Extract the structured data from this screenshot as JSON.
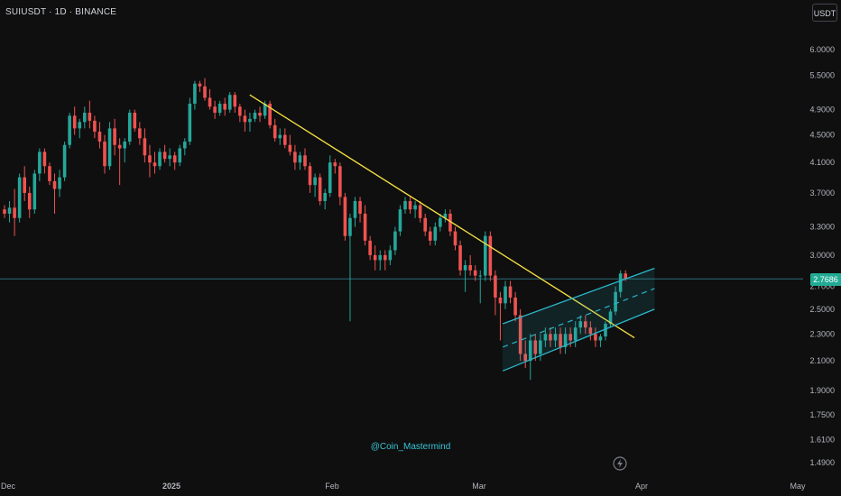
{
  "header": {
    "symbol": "SUIUSDT · 1D · BINANCE"
  },
  "toolbar": {
    "currency_label": "USDT"
  },
  "watermark": {
    "text": "@Coin_Mastermind"
  },
  "icons": {
    "replay": "lightning-icon"
  },
  "colors": {
    "background": "#0f0f0f",
    "up": "#26a69a",
    "down": "#ef5350",
    "trendline": "#f5e042",
    "channel": "#2bb6c9",
    "price_line": "#2a6f7a",
    "axis_text": "#b2b5be",
    "watermark": "#38c3d4"
  },
  "chart_data": {
    "type": "candlestick",
    "symbol": "SUIUSDT",
    "interval": "1D",
    "exchange": "BINANCE",
    "y_scale": "log",
    "ylim": [
      1.43,
      6.3
    ],
    "y_ticks": [
      "6.0000",
      "5.5000",
      "4.9000",
      "4.5000",
      "4.1000",
      "3.7000",
      "3.3000",
      "3.0000",
      "2.7000",
      "2.5000",
      "2.3000",
      "2.1000",
      "1.9000",
      "1.7500",
      "1.6100",
      "1.4900"
    ],
    "x_ticks": [
      "Dec",
      "2025",
      "Feb",
      "Mar",
      "Apr",
      "May"
    ],
    "last_price": 2.7686,
    "last_price_label": "2.7686",
    "candles": [
      [
        3.5,
        3.55,
        3.4,
        3.45
      ],
      [
        3.45,
        3.6,
        3.35,
        3.52
      ],
      [
        3.52,
        3.75,
        3.2,
        3.4
      ],
      [
        3.4,
        3.95,
        3.35,
        3.9
      ],
      [
        3.9,
        4.05,
        3.6,
        3.7
      ],
      [
        3.7,
        3.78,
        3.4,
        3.5
      ],
      [
        3.5,
        4.0,
        3.45,
        3.95
      ],
      [
        3.95,
        4.3,
        3.85,
        4.25
      ],
      [
        4.25,
        4.3,
        3.95,
        4.05
      ],
      [
        4.05,
        4.1,
        3.8,
        3.85
      ],
      [
        3.85,
        3.95,
        3.45,
        3.75
      ],
      [
        3.75,
        4.0,
        3.65,
        3.9
      ],
      [
        3.9,
        4.4,
        3.85,
        4.35
      ],
      [
        4.35,
        4.85,
        4.3,
        4.8
      ],
      [
        4.8,
        4.95,
        4.5,
        4.6
      ],
      [
        4.6,
        4.75,
        4.45,
        4.7
      ],
      [
        4.7,
        4.95,
        4.6,
        4.85
      ],
      [
        4.85,
        5.05,
        4.6,
        4.72
      ],
      [
        4.72,
        4.8,
        4.45,
        4.55
      ],
      [
        4.55,
        4.7,
        4.3,
        4.4
      ],
      [
        4.4,
        4.5,
        3.95,
        4.05
      ],
      [
        4.05,
        4.7,
        4.0,
        4.6
      ],
      [
        4.6,
        4.75,
        4.2,
        4.35
      ],
      [
        4.35,
        4.45,
        3.8,
        4.3
      ],
      [
        4.3,
        4.45,
        4.1,
        4.4
      ],
      [
        4.4,
        4.9,
        4.35,
        4.85
      ],
      [
        4.85,
        4.9,
        4.55,
        4.6
      ],
      [
        4.6,
        4.7,
        4.35,
        4.45
      ],
      [
        4.45,
        4.6,
        4.1,
        4.2
      ],
      [
        4.2,
        4.35,
        3.9,
        4.1
      ],
      [
        4.1,
        4.25,
        3.95,
        4.05
      ],
      [
        4.05,
        4.3,
        4.0,
        4.25
      ],
      [
        4.25,
        4.35,
        4.1,
        4.15
      ],
      [
        4.15,
        4.3,
        4.05,
        4.2
      ],
      [
        4.2,
        4.25,
        4.0,
        4.1
      ],
      [
        4.1,
        4.35,
        4.05,
        4.3
      ],
      [
        4.3,
        4.45,
        4.2,
        4.4
      ],
      [
        4.4,
        5.1,
        4.35,
        5.0
      ],
      [
        5.0,
        5.4,
        4.9,
        5.35
      ],
      [
        5.35,
        5.4,
        5.2,
        5.3
      ],
      [
        5.3,
        5.45,
        5.05,
        5.1
      ],
      [
        5.1,
        5.25,
        4.9,
        4.95
      ],
      [
        4.95,
        5.05,
        4.75,
        4.85
      ],
      [
        4.85,
        5.05,
        4.8,
        5.0
      ],
      [
        5.0,
        5.1,
        4.8,
        4.9
      ],
      [
        4.9,
        5.2,
        4.85,
        5.15
      ],
      [
        5.15,
        5.2,
        4.85,
        4.95
      ],
      [
        4.95,
        5.0,
        4.7,
        4.8
      ],
      [
        4.8,
        4.9,
        4.55,
        4.7
      ],
      [
        4.7,
        4.85,
        4.55,
        4.75
      ],
      [
        4.75,
        4.9,
        4.7,
        4.85
      ],
      [
        4.85,
        4.95,
        4.7,
        4.8
      ],
      [
        4.8,
        5.05,
        4.75,
        5.0
      ],
      [
        5.0,
        5.05,
        4.6,
        4.65
      ],
      [
        4.65,
        4.75,
        4.4,
        4.45
      ],
      [
        4.45,
        4.6,
        4.35,
        4.5
      ],
      [
        4.5,
        4.6,
        4.3,
        4.35
      ],
      [
        4.35,
        4.5,
        4.2,
        4.25
      ],
      [
        4.25,
        4.35,
        4.0,
        4.1
      ],
      [
        4.1,
        4.25,
        4.0,
        4.2
      ],
      [
        4.2,
        4.3,
        4.0,
        4.05
      ],
      [
        4.05,
        4.1,
        3.7,
        3.8
      ],
      [
        3.8,
        3.95,
        3.65,
        3.9
      ],
      [
        3.9,
        3.95,
        3.55,
        3.6
      ],
      [
        3.6,
        3.75,
        3.5,
        3.7
      ],
      [
        3.7,
        4.2,
        3.65,
        4.1
      ],
      [
        4.1,
        4.15,
        3.95,
        4.05
      ],
      [
        4.05,
        4.1,
        3.55,
        3.65
      ],
      [
        3.65,
        3.7,
        3.15,
        3.2
      ],
      [
        3.2,
        3.45,
        2.4,
        3.4
      ],
      [
        3.4,
        3.65,
        3.3,
        3.6
      ],
      [
        3.6,
        3.65,
        3.35,
        3.45
      ],
      [
        3.45,
        3.55,
        3.1,
        3.15
      ],
      [
        3.15,
        3.2,
        2.95,
        3.0
      ],
      [
        3.0,
        3.1,
        2.85,
        2.95
      ],
      [
        2.95,
        3.05,
        2.85,
        3.0
      ],
      [
        3.0,
        3.05,
        2.85,
        2.95
      ],
      [
        2.95,
        3.1,
        2.9,
        3.05
      ],
      [
        3.05,
        3.3,
        3.0,
        3.25
      ],
      [
        3.25,
        3.55,
        3.2,
        3.5
      ],
      [
        3.5,
        3.65,
        3.45,
        3.6
      ],
      [
        3.6,
        3.65,
        3.45,
        3.5
      ],
      [
        3.5,
        3.6,
        3.4,
        3.55
      ],
      [
        3.55,
        3.6,
        3.35,
        3.4
      ],
      [
        3.4,
        3.45,
        3.2,
        3.25
      ],
      [
        3.25,
        3.3,
        3.1,
        3.15
      ],
      [
        3.15,
        3.35,
        3.1,
        3.3
      ],
      [
        3.3,
        3.45,
        3.25,
        3.4
      ],
      [
        3.4,
        3.5,
        3.35,
        3.45
      ],
      [
        3.45,
        3.5,
        3.2,
        3.25
      ],
      [
        3.25,
        3.3,
        3.05,
        3.1
      ],
      [
        3.1,
        3.15,
        2.8,
        2.85
      ],
      [
        2.85,
        2.95,
        2.65,
        2.9
      ],
      [
        2.9,
        3.0,
        2.8,
        2.85
      ],
      [
        2.85,
        2.9,
        2.75,
        2.8
      ],
      [
        2.8,
        2.85,
        2.55,
        2.8
      ],
      [
        2.8,
        3.25,
        2.75,
        3.2
      ],
      [
        3.2,
        3.25,
        2.75,
        2.8
      ],
      [
        2.8,
        2.85,
        2.45,
        2.6
      ],
      [
        2.6,
        2.65,
        2.25,
        2.55
      ],
      [
        2.55,
        2.75,
        2.5,
        2.7
      ],
      [
        2.7,
        2.75,
        2.55,
        2.6
      ],
      [
        2.6,
        2.65,
        2.4,
        2.45
      ],
      [
        2.45,
        2.5,
        2.1,
        2.15
      ],
      [
        2.15,
        2.25,
        2.05,
        2.1
      ],
      [
        2.1,
        2.3,
        1.97,
        2.25
      ],
      [
        2.25,
        2.3,
        2.1,
        2.15
      ],
      [
        2.15,
        2.3,
        2.1,
        2.25
      ],
      [
        2.25,
        2.35,
        2.2,
        2.3
      ],
      [
        2.3,
        2.35,
        2.2,
        2.25
      ],
      [
        2.25,
        2.35,
        2.2,
        2.3
      ],
      [
        2.3,
        2.35,
        2.15,
        2.2
      ],
      [
        2.2,
        2.35,
        2.15,
        2.3
      ],
      [
        2.3,
        2.35,
        2.2,
        2.25
      ],
      [
        2.25,
        2.4,
        2.2,
        2.35
      ],
      [
        2.35,
        2.45,
        2.3,
        2.4
      ],
      [
        2.4,
        2.45,
        2.3,
        2.35
      ],
      [
        2.35,
        2.4,
        2.25,
        2.3
      ],
      [
        2.3,
        2.35,
        2.2,
        2.25
      ],
      [
        2.25,
        2.3,
        2.2,
        2.28
      ],
      [
        2.28,
        2.4,
        2.25,
        2.38
      ],
      [
        2.38,
        2.5,
        2.35,
        2.48
      ],
      [
        2.48,
        2.7,
        2.45,
        2.65
      ],
      [
        2.65,
        2.85,
        2.6,
        2.82
      ],
      [
        2.82,
        2.85,
        2.75,
        2.77
      ]
    ],
    "trendlines": [
      {
        "type": "descending-resistance",
        "from": [
          0.311,
          5.15
        ],
        "to": [
          0.79,
          2.27
        ]
      }
    ],
    "channel": {
      "type": "ascending",
      "upper": [
        [
          0.626,
          2.38
        ],
        [
          0.815,
          2.87
        ]
      ],
      "lower": [
        [
          0.626,
          2.03
        ],
        [
          0.815,
          2.5
        ]
      ],
      "mid": [
        [
          0.626,
          2.2
        ],
        [
          0.815,
          2.68
        ]
      ]
    }
  }
}
